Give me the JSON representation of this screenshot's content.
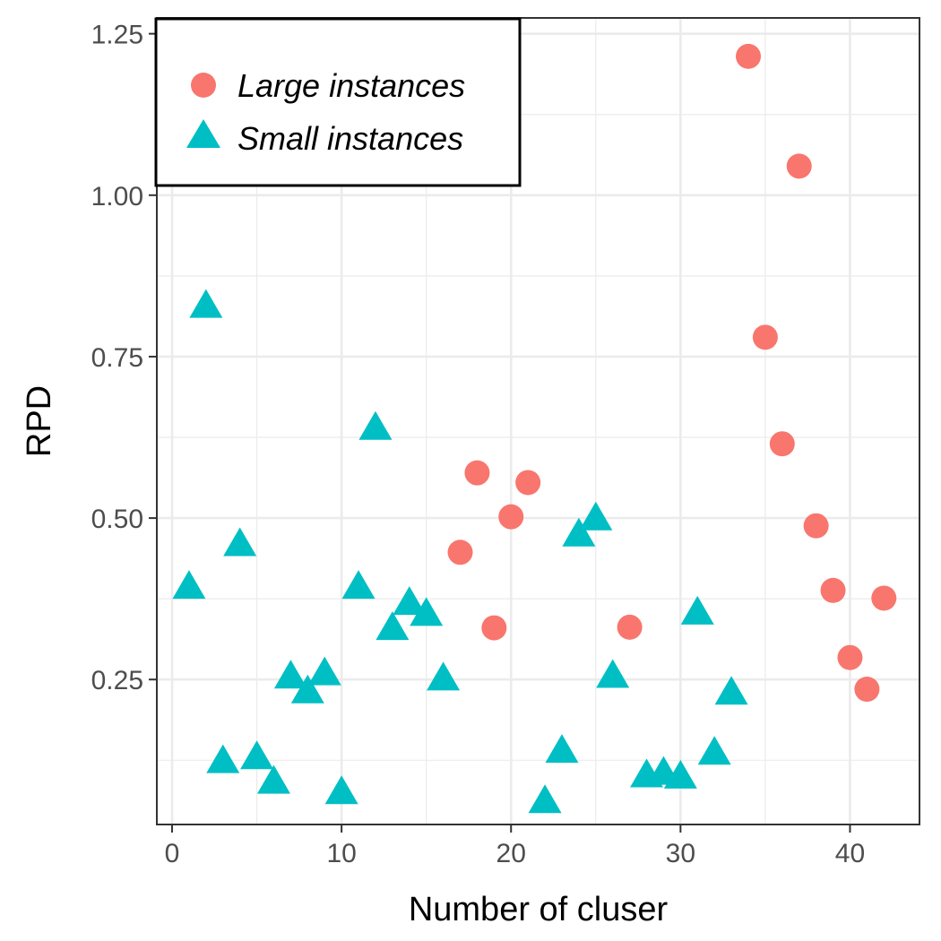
{
  "chart_data": {
    "type": "scatter",
    "title": "",
    "xlabel": "Number of cluser",
    "ylabel": "RPD",
    "xlim": [
      -0.9,
      44.1
    ],
    "ylim": [
      0.0255,
      1.2745
    ],
    "x_ticks": [
      0,
      10,
      20,
      30,
      40
    ],
    "x_tick_labels": [
      "0",
      "10",
      "20",
      "30",
      "40"
    ],
    "y_ticks": [
      0.25,
      0.5,
      0.75,
      1.0,
      1.25
    ],
    "y_tick_labels": [
      "0.25",
      "0.50",
      "0.75",
      "1.00",
      "1.25"
    ],
    "grid": true,
    "legend_position": "top-left",
    "series": [
      {
        "name": "Large instances",
        "marker": "circle",
        "color": "#F8766D",
        "points": [
          {
            "x": 17,
            "y": 0.447
          },
          {
            "x": 18,
            "y": 0.57
          },
          {
            "x": 19,
            "y": 0.33
          },
          {
            "x": 20,
            "y": 0.502
          },
          {
            "x": 21,
            "y": 0.555
          },
          {
            "x": 27,
            "y": 0.331
          },
          {
            "x": 34,
            "y": 1.215
          },
          {
            "x": 35,
            "y": 0.78
          },
          {
            "x": 36,
            "y": 0.615
          },
          {
            "x": 37,
            "y": 1.045
          },
          {
            "x": 38,
            "y": 0.488
          },
          {
            "x": 39,
            "y": 0.388
          },
          {
            "x": 40,
            "y": 0.284
          },
          {
            "x": 41,
            "y": 0.235
          },
          {
            "x": 42,
            "y": 0.376
          }
        ]
      },
      {
        "name": "Small instances",
        "marker": "triangle",
        "color": "#00BFC4",
        "points": [
          {
            "x": 1,
            "y": 0.392
          },
          {
            "x": 2,
            "y": 0.827
          },
          {
            "x": 3,
            "y": 0.122
          },
          {
            "x": 4,
            "y": 0.458
          },
          {
            "x": 5,
            "y": 0.128
          },
          {
            "x": 6,
            "y": 0.09
          },
          {
            "x": 7,
            "y": 0.253
          },
          {
            "x": 8,
            "y": 0.23
          },
          {
            "x": 9,
            "y": 0.258
          },
          {
            "x": 10,
            "y": 0.074
          },
          {
            "x": 11,
            "y": 0.392
          },
          {
            "x": 12,
            "y": 0.638
          },
          {
            "x": 13,
            "y": 0.328
          },
          {
            "x": 14,
            "y": 0.367
          },
          {
            "x": 15,
            "y": 0.35
          },
          {
            "x": 16,
            "y": 0.25
          },
          {
            "x": 22,
            "y": 0.06
          },
          {
            "x": 23,
            "y": 0.138
          },
          {
            "x": 24,
            "y": 0.473
          },
          {
            "x": 25,
            "y": 0.498
          },
          {
            "x": 26,
            "y": 0.254
          },
          {
            "x": 28,
            "y": 0.1
          },
          {
            "x": 29,
            "y": 0.104
          },
          {
            "x": 30,
            "y": 0.098
          },
          {
            "x": 31,
            "y": 0.352
          },
          {
            "x": 32,
            "y": 0.135
          },
          {
            "x": 33,
            "y": 0.228
          }
        ]
      }
    ]
  }
}
